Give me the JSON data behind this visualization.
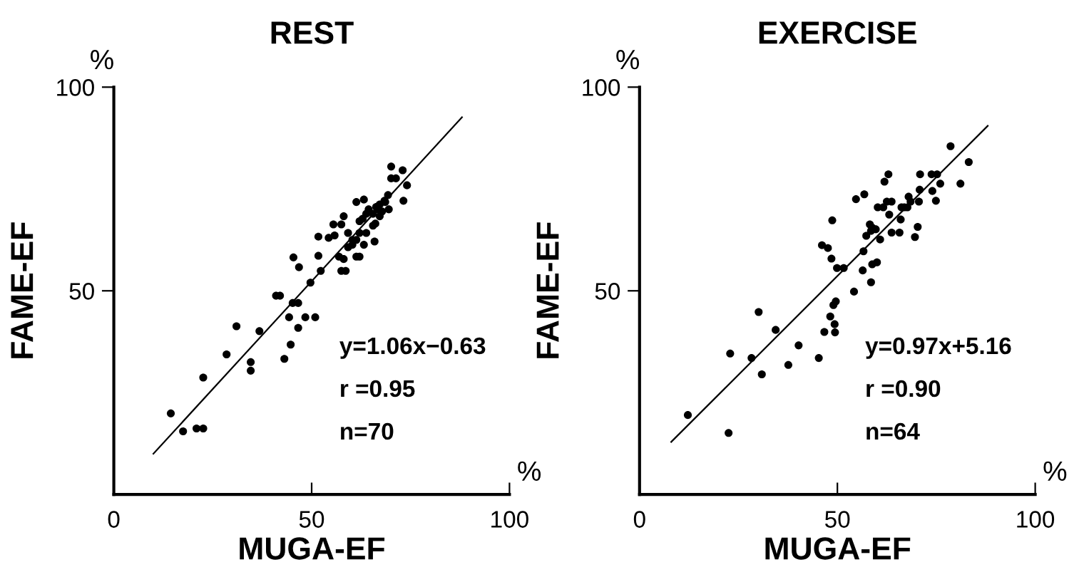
{
  "chart_data": [
    {
      "type": "scatter",
      "title": "REST",
      "xlabel": "MUGA-EF",
      "ylabel": "FAME-EF",
      "xlim": [
        0,
        100
      ],
      "ylim": [
        0,
        100
      ],
      "xticks": [
        0,
        50,
        100
      ],
      "yticks": [
        50,
        100
      ],
      "grid": false,
      "legend": false,
      "annotations": [
        "%",
        "%",
        "y=1.06x−0.63",
        "r =0.95",
        "n=70"
      ],
      "series": [
        {
          "color": "#000000",
          "marker": "circle",
          "x": [
            14.4,
            17.5,
            20.9,
            22.6,
            22.6,
            28.5,
            31.0,
            34.6,
            34.6,
            36.8,
            43.1,
            44.7,
            44.3,
            46.6,
            45.2,
            46.6,
            41.0,
            42.0,
            48.4,
            50.9,
            45.4,
            46.8,
            49.7,
            52.3,
            51.7,
            51.7,
            54.3,
            55.5,
            57.5,
            58.1,
            56.9,
            57.5,
            58.6,
            58.1,
            59.2,
            60.3,
            61.3,
            62.1,
            61.3,
            62.1,
            61.3,
            63.2,
            62.9,
            63.8,
            64.4,
            63.2,
            65.9,
            66.1,
            66.7,
            67.2,
            67.8,
            68.6,
            69.3,
            69.5,
            65.5,
            67.2,
            65.5,
            63.8,
            59.2,
            62.1,
            70.1,
            73.0,
            70.1,
            71.3,
            74.1,
            73.2,
            68.4,
            66.3,
            60.3,
            55.8
          ],
          "values": [
            19.9,
            15.5,
            16.2,
            16.2,
            28.7,
            34.4,
            41.3,
            32.5,
            30.4,
            40.1,
            33.3,
            36.8,
            43.5,
            40.9,
            47.0,
            47.0,
            48.8,
            48.8,
            43.5,
            43.5,
            58.2,
            55.8,
            52.0,
            54.9,
            63.3,
            58.6,
            63.0,
            66.3,
            66.3,
            68.3,
            58.4,
            54.9,
            54.9,
            57.8,
            64.2,
            61.3,
            58.4,
            58.4,
            62.5,
            64.2,
            71.8,
            72.4,
            67.7,
            68.9,
            70.0,
            61.3,
            62.1,
            66.5,
            70.0,
            71.2,
            69.5,
            71.8,
            73.5,
            70.0,
            68.9,
            68.3,
            66.0,
            64.2,
            60.7,
            67.1,
            80.5,
            79.6,
            77.6,
            77.6,
            75.9,
            72.1,
            72.1,
            70.6,
            62.5,
            63.6
          ]
        },
        {
          "type": "line",
          "color": "#000000",
          "marker": "none",
          "line_style": "solid",
          "x": [
            10,
            88
          ],
          "values": [
            10.0,
            92.6
          ]
        }
      ]
    },
    {
      "type": "scatter",
      "title": "EXERCISE",
      "xlabel": "MUGA-EF",
      "ylabel": "FAME-EF",
      "xlim": [
        0,
        100
      ],
      "ylim": [
        0,
        100
      ],
      "xticks": [
        0,
        50,
        100
      ],
      "yticks": [
        50,
        100
      ],
      "grid": false,
      "legend": false,
      "annotations": [
        "%",
        "%",
        "y=0.97x+5.16",
        "r =0.90",
        "n=64"
      ],
      "series": [
        {
          "color": "#000000",
          "marker": "circle",
          "x": [
            12.2,
            22.5,
            22.9,
            28.3,
            30.9,
            30.1,
            34.4,
            37.6,
            40.2,
            45.3,
            46.7,
            48.2,
            49.0,
            49.6,
            49.3,
            49.4,
            48.7,
            46.1,
            47.6,
            48.5,
            49.9,
            51.6,
            54.2,
            56.4,
            58.5,
            58.8,
            60.0,
            56.6,
            54.7,
            56.8,
            57.3,
            58.5,
            58.2,
            58.8,
            59.7,
            60.8,
            60.2,
            61.6,
            61.9,
            62.9,
            62.5,
            63.7,
            63.1,
            63.7,
            65.7,
            66.0,
            66.2,
            67.7,
            68.0,
            68.5,
            69.6,
            70.3,
            70.6,
            70.8,
            70.9,
            73.8,
            75.2,
            74.0,
            74.9,
            76.0,
            78.6,
            81.1,
            83.2,
            66.9
          ],
          "values": [
            19.5,
            15.1,
            34.6,
            33.5,
            29.5,
            44.8,
            40.4,
            31.8,
            36.6,
            33.5,
            39.9,
            43.7,
            46.5,
            47.4,
            41.8,
            39.8,
            67.3,
            61.2,
            60.5,
            57.9,
            55.6,
            55.6,
            49.8,
            55.0,
            52.1,
            56.5,
            57.0,
            59.7,
            72.5,
            73.7,
            63.5,
            64.7,
            66.3,
            65.5,
            65.1,
            62.6,
            70.5,
            70.5,
            76.8,
            78.6,
            71.9,
            71.9,
            68.7,
            64.3,
            64.3,
            67.5,
            70.5,
            70.5,
            73.1,
            71.9,
            63.2,
            65.7,
            71.9,
            74.8,
            78.6,
            78.6,
            78.6,
            74.5,
            72.1,
            76.3,
            85.5,
            76.3,
            81.6,
            70.5
          ]
        },
        {
          "type": "line",
          "color": "#000000",
          "marker": "none",
          "line_style": "solid",
          "x": [
            8,
            88
          ],
          "values": [
            12.9,
            90.5
          ]
        }
      ]
    }
  ]
}
